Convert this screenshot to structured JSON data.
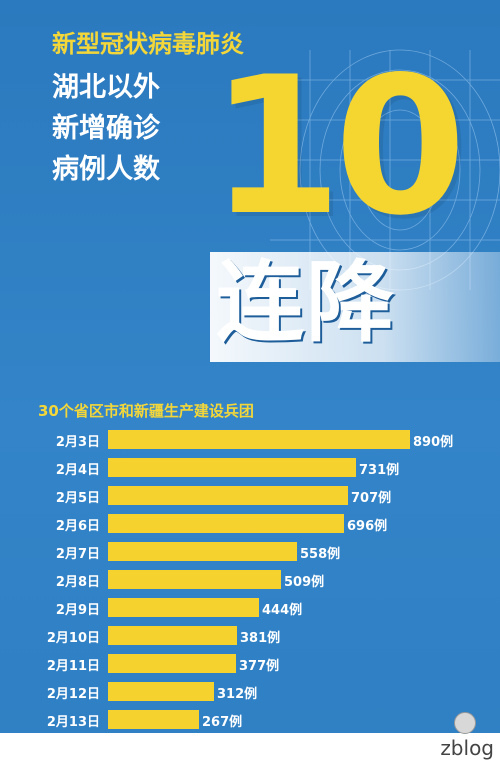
{
  "headline": {
    "line1": "新型冠状病毒肺炎",
    "line2": "湖北以外",
    "line3": "新增确诊",
    "line4": "病例人数"
  },
  "big_number": "10",
  "banner_text": "连降",
  "watermark": "zblog",
  "colors": {
    "background": "#2f7fc4",
    "bar": "#f5d22e",
    "accent": "#f3d73a",
    "text": "#ffffff"
  },
  "chart_data": {
    "type": "bar",
    "orientation": "horizontal",
    "title": "30个省区市和新疆生产建设兵团",
    "categories": [
      "2月3日",
      "2月4日",
      "2月5日",
      "2月6日",
      "2月7日",
      "2月8日",
      "2月9日",
      "2月10日",
      "2月11日",
      "2月12日",
      "2月13日"
    ],
    "values": [
      890,
      731,
      707,
      696,
      558,
      509,
      444,
      381,
      377,
      312,
      267
    ],
    "value_labels": [
      "890例",
      "731例",
      "707例",
      "696例",
      "558例",
      "509例",
      "444例",
      "381例",
      "377例",
      "312例",
      "267例"
    ],
    "xlim": [
      0,
      890
    ],
    "grid": false,
    "legend": "none"
  }
}
